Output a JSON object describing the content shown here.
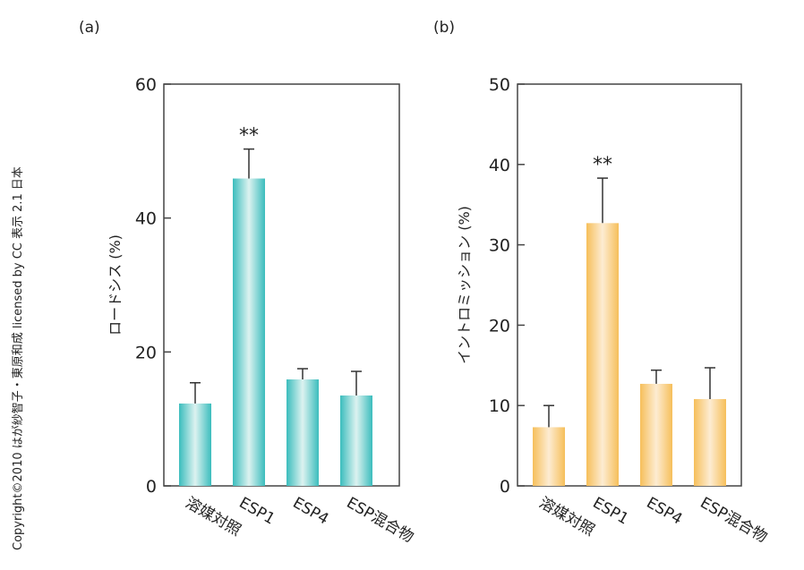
{
  "copyright": "Copyright©2010 はが紗智子・東原和成 licensed by CC 表示 2.1 日本",
  "chart_data": [
    {
      "type": "bar",
      "panel": "(a)",
      "categories": [
        "溶媒対照",
        "ESP1",
        "ESP4",
        "ESP混合物"
      ],
      "values": [
        12.3,
        45.9,
        15.9,
        13.5
      ],
      "error_upper": [
        15.4,
        50.3,
        17.5,
        17.1
      ],
      "annotations": [
        "",
        "**",
        "",
        ""
      ],
      "ylabel": "ロードシス (%)",
      "ylim": [
        0,
        60
      ],
      "yticks": [
        0,
        20,
        40,
        60
      ],
      "color": "#3bbdbd",
      "color_center": "#dcf2f0"
    },
    {
      "type": "bar",
      "panel": "(b)",
      "categories": [
        "溶媒対照",
        "ESP1",
        "ESP4",
        "ESP混合物"
      ],
      "values": [
        7.3,
        32.7,
        12.7,
        10.8
      ],
      "error_upper": [
        10.0,
        38.3,
        14.4,
        14.7
      ],
      "annotations": [
        "",
        "**",
        "",
        ""
      ],
      "ylabel": "イントロミッション (%)",
      "ylim": [
        0,
        50
      ],
      "yticks": [
        0,
        10,
        20,
        30,
        40,
        50
      ],
      "color": "#f6bf5a",
      "color_center": "#fdecd2"
    }
  ]
}
